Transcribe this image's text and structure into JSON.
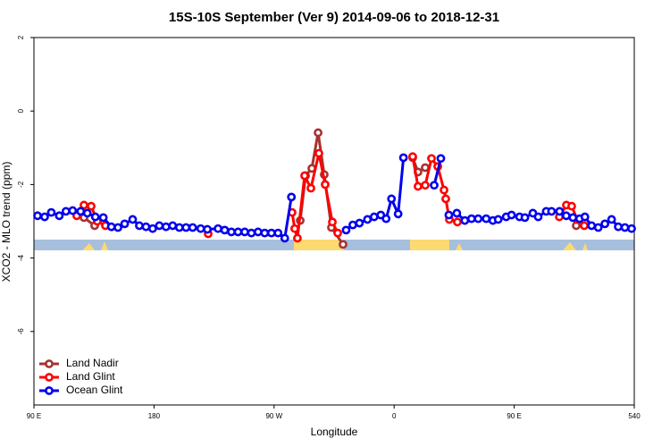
{
  "chart_data": {
    "type": "line",
    "title": "15S-10S September (Ver 9)   2014-09-06 to 2018-12-31",
    "x_label": "Longitude",
    "y_label": "XCO2 - MLO trend (ppm)",
    "xlim": [
      90,
      540
    ],
    "ylim": [
      -8,
      2
    ],
    "xticks": [
      {
        "value": 90,
        "label": "90 E"
      },
      180,
      {
        "value": 270,
        "label": "90 W"
      },
      {
        "value": 360,
        "label": "0"
      },
      {
        "value": 450,
        "label": "90 E"
      },
      540
    ],
    "yticks": [
      2,
      0,
      -2,
      -4,
      -6
    ],
    "legend": "bottomleft",
    "series": [
      {
        "name": "Land Nadir",
        "color": "#a83232",
        "x": [
          127.5,
          135.5,
          200,
          289.6,
          293.6,
          298.3,
          303,
          307.6,
          313,
          321.7,
          350,
          373.9,
          377.9,
          383.3,
          450,
          496.5
        ],
        "values": [
          -2.9,
          -3.12,
          null,
          -2.98,
          -1.76,
          -1.56,
          -0.59,
          -1.73,
          -3.17,
          -3.63,
          null,
          -1.27,
          -1.66,
          -1.54,
          null,
          -3.12
        ]
      },
      {
        "name": "Land Glint",
        "color": "#ff0000",
        "x": [
          122.1,
          127.5,
          132.9,
          137.5,
          143.6,
          180,
          220.6,
          250,
          283.5,
          285.5,
          287.5,
          292.9,
          297.6,
          303.6,
          308.3,
          313.7,
          317.7,
          350,
          373.9,
          377.9,
          383.3,
          388,
          392.7,
          397.4,
          398.7,
          401.4,
          407.4,
          450,
          483.8,
          489.1,
          493.1,
          497.2,
          502.5
        ],
        "values": [
          -2.85,
          -2.56,
          -2.59,
          -3.0,
          -3.12,
          null,
          -3.34,
          null,
          -2.76,
          -3.2,
          -3.46,
          -1.76,
          -2.1,
          -1.15,
          -2.0,
          -3.02,
          -3.32,
          null,
          -1.24,
          -2.05,
          -2.02,
          -1.29,
          -1.51,
          -2.15,
          -2.39,
          -2.95,
          -3.02,
          null,
          -2.88,
          -2.56,
          -2.59,
          -2.95,
          -3.12
        ]
      },
      {
        "name": "Ocean Glint",
        "color": "#0000ee",
        "x": [
          92.7,
          98,
          103,
          109,
          114,
          119,
          125,
          130,
          136,
          142,
          148,
          153,
          158,
          164,
          169,
          174,
          179,
          184,
          189,
          194,
          199,
          204,
          209,
          215,
          220,
          228,
          233,
          238,
          243,
          248,
          253,
          258,
          263,
          268,
          273,
          278,
          283,
          300,
          324,
          329,
          334,
          340,
          345,
          350,
          354,
          358,
          363,
          367,
          380,
          390,
          395,
          398,
          401,
          407,
          413,
          418,
          423,
          429,
          434,
          438,
          444,
          448,
          454,
          458,
          464,
          468,
          474,
          478,
          484,
          489,
          494,
          499,
          503,
          508,
          513,
          518,
          523,
          528,
          533,
          538
        ],
        "values": [
          -2.85,
          -2.88,
          -2.76,
          -2.85,
          -2.73,
          -2.71,
          -2.73,
          -2.78,
          -2.88,
          -2.9,
          -3.15,
          -3.17,
          -3.07,
          -2.95,
          -3.12,
          -3.15,
          -3.2,
          -3.12,
          -3.15,
          -3.12,
          -3.17,
          -3.17,
          -3.17,
          -3.2,
          -3.22,
          -3.2,
          -3.24,
          -3.29,
          -3.29,
          -3.29,
          -3.32,
          -3.29,
          -3.32,
          -3.32,
          -3.32,
          -3.46,
          -2.34,
          null,
          -3.24,
          -3.1,
          -3.05,
          -2.95,
          -2.88,
          -2.83,
          -2.93,
          -2.39,
          -2.8,
          -1.27,
          null,
          -2.02,
          -1.29,
          null,
          -2.83,
          -2.78,
          -2.98,
          -2.93,
          -2.93,
          -2.93,
          -2.98,
          -2.95,
          -2.88,
          -2.83,
          -2.88,
          -2.9,
          -2.78,
          -2.88,
          -2.73,
          -2.73,
          -2.73,
          -2.85,
          -2.9,
          -2.93,
          -2.88,
          -3.12,
          -3.17,
          -3.07,
          -2.95,
          -3.15,
          -3.17,
          -3.2
        ]
      }
    ]
  }
}
